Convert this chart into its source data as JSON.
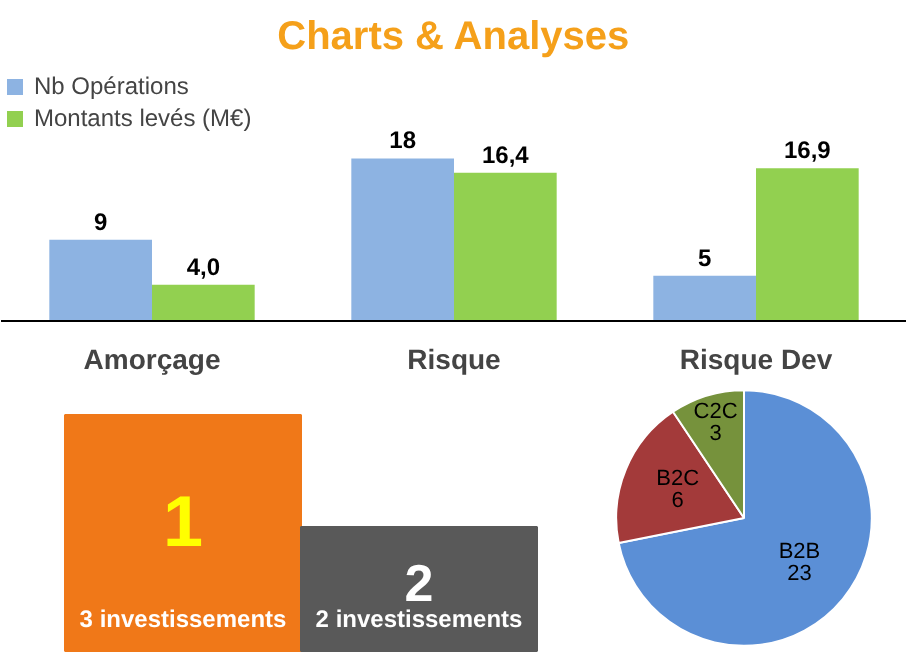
{
  "chart_data": [
    {
      "type": "bar",
      "title": "Charts & Analyses",
      "categories": [
        "Amorçage",
        "Risque",
        "Risque Dev"
      ],
      "series": [
        {
          "name": "Nb Opérations",
          "color": "#8db3e2",
          "values": [
            9,
            18,
            5
          ],
          "value_labels": [
            "9",
            "18",
            "5"
          ]
        },
        {
          "name": "Montants levés (M€)",
          "color": "#92d050",
          "values": [
            4.0,
            16.4,
            16.9
          ],
          "value_labels": [
            "4,0",
            "16,4",
            "16,9"
          ]
        }
      ],
      "legend": "top left",
      "grid": false
    },
    {
      "type": "other",
      "categories": [
        "3 investissements",
        "2 investissements"
      ],
      "values": [
        1,
        2
      ],
      "value_labels": [
        "1",
        "2"
      ],
      "colors": [
        "#f07818",
        "#595959"
      ]
    },
    {
      "type": "pie",
      "categories": [
        "B2B",
        "B2C",
        "C2C"
      ],
      "values": [
        23,
        6,
        3
      ],
      "colors": [
        "#5b8fd6",
        "#a33a3a",
        "#76923c"
      ],
      "data_labels": true
    }
  ]
}
